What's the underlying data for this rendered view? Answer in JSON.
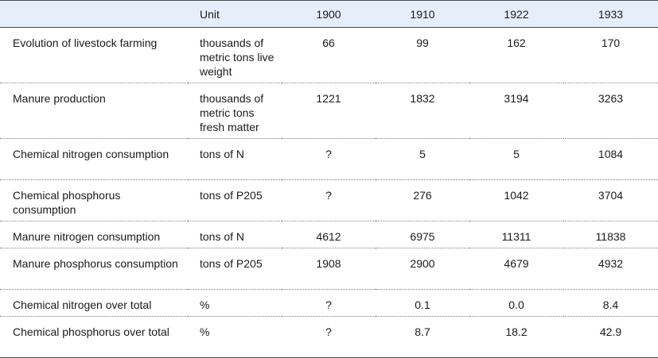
{
  "table": {
    "headers": {
      "label": "",
      "unit": "Unit",
      "years": [
        "1900",
        "1910",
        "1922",
        "1933"
      ]
    },
    "rows": [
      {
        "label": "Evolution of livestock farming",
        "unit": "thousands of metric tons live weight",
        "values": [
          "66",
          "99",
          "162",
          "170"
        ]
      },
      {
        "label": "Manure production",
        "unit": "thousands of metric tons fresh matter",
        "values": [
          "1221",
          "1832",
          "3194",
          "3263"
        ]
      },
      {
        "label": "Chemical nitrogen consumption",
        "unit": "tons of N",
        "values": [
          "?",
          "5",
          "5",
          "1084"
        ]
      },
      {
        "label": "Chemical phosphorus consumption",
        "unit": "tons of P205",
        "values": [
          "?",
          "276",
          "1042",
          "3704"
        ]
      },
      {
        "label": "Manure nitrogen consumption",
        "unit": "tons of N",
        "values": [
          "4612",
          "6975",
          "11311",
          "11838"
        ]
      },
      {
        "label": "Manure phosphorus consumption",
        "unit": "tons of P205",
        "values": [
          "1908",
          "2900",
          "4679",
          "4932"
        ]
      },
      {
        "label": "Chemical nitrogen over total",
        "unit": "%",
        "values": [
          "?",
          "0.1",
          "0.0",
          "8.4"
        ]
      },
      {
        "label": "Chemical phosphorus over total",
        "unit": "%",
        "values": [
          "?",
          "8.7",
          "18.2",
          "42.9"
        ]
      }
    ]
  },
  "colors": {
    "header_background": "#e6eefa",
    "rule": "#4a4a4a",
    "row_divider": "#7f7f7f"
  }
}
